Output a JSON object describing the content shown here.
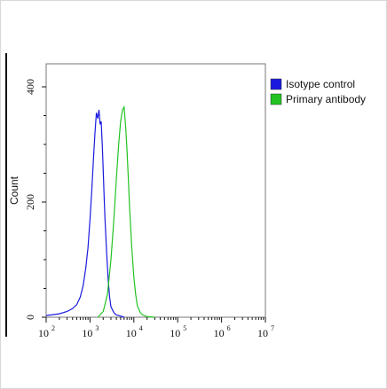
{
  "chart_data": {
    "type": "line",
    "title": "",
    "xlabel": "",
    "ylabel": "Count",
    "x_scale": "log",
    "xlim": [
      100,
      10000000
    ],
    "ylim": [
      0,
      440
    ],
    "x_ticks": [
      {
        "value": 100,
        "label": "10",
        "exp": "2"
      },
      {
        "value": 1000,
        "label": "10",
        "exp": "3"
      },
      {
        "value": 10000,
        "label": "10",
        "exp": "4"
      },
      {
        "value": 100000,
        "label": "10",
        "exp": "5"
      },
      {
        "value": 1000000,
        "label": "10",
        "exp": "6"
      },
      {
        "value": 10000000,
        "label": "10",
        "exp": "7"
      }
    ],
    "y_ticks": [
      {
        "value": 0,
        "label": "0"
      },
      {
        "value": 200,
        "label": "200"
      },
      {
        "value": 400,
        "label": "400"
      }
    ],
    "grid": false,
    "legend_position": "right",
    "series": [
      {
        "name": "Isotype control",
        "color": "#1a1adf",
        "x": [
          100,
          200,
          300,
          400,
          500,
          600,
          700,
          800,
          900,
          1000,
          1100,
          1200,
          1300,
          1400,
          1500,
          1600,
          1700,
          1800,
          1900,
          2000,
          2100,
          2200,
          2400,
          2600,
          2800,
          3000,
          3500,
          4000,
          5000,
          6000
        ],
        "y": [
          3,
          6,
          10,
          15,
          22,
          35,
          55,
          85,
          120,
          170,
          220,
          275,
          320,
          355,
          345,
          360,
          335,
          340,
          300,
          255,
          210,
          170,
          110,
          65,
          35,
          18,
          8,
          4,
          2,
          0
        ]
      },
      {
        "name": "Primary antibody",
        "color": "#22c322",
        "x": [
          1500,
          2000,
          2500,
          3000,
          3500,
          4000,
          4500,
          5000,
          5500,
          6000,
          6500,
          7000,
          7500,
          8000,
          9000,
          10000,
          11000,
          12000,
          14000,
          16000,
          20000,
          30000
        ],
        "y": [
          0,
          10,
          40,
          100,
          170,
          240,
          300,
          340,
          360,
          365,
          330,
          290,
          240,
          190,
          120,
          70,
          40,
          20,
          8,
          4,
          1,
          0
        ]
      }
    ]
  }
}
